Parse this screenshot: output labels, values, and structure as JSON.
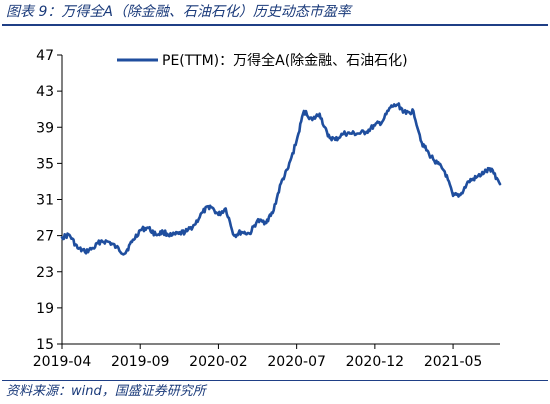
{
  "figure": {
    "title": "图表 9：万得全A（除金融、石油石化）历史动态市盈率",
    "source": "资料来源：wind，国盛证券研究所"
  },
  "colors": {
    "series": "#1f4e9e",
    "title": "#1a3a7a",
    "axis": "#000000"
  },
  "chart_data": {
    "type": "line",
    "title": "",
    "xlabel": "",
    "ylabel": "",
    "ylim": [
      15,
      47
    ],
    "y_ticks": [
      15,
      19,
      23,
      27,
      31,
      35,
      39,
      43,
      47
    ],
    "x_tick_labels": [
      "2019-04",
      "2019-09",
      "2020-02",
      "2020-07",
      "2020-12",
      "2021-05"
    ],
    "x_range_months": [
      "2019-04",
      "2021-08"
    ],
    "grid": false,
    "legend_position": "top-center",
    "series": [
      {
        "name": "PE(TTM)：万得全A(除金融、石油石化)",
        "x": [
          "2019-04-01",
          "2019-04-15",
          "2019-05-01",
          "2019-05-15",
          "2019-06-01",
          "2019-06-15",
          "2019-07-01",
          "2019-07-15",
          "2019-08-01",
          "2019-08-15",
          "2019-09-01",
          "2019-09-15",
          "2019-10-01",
          "2019-10-15",
          "2019-11-01",
          "2019-11-15",
          "2019-12-01",
          "2019-12-15",
          "2020-01-01",
          "2020-01-15",
          "2020-02-01",
          "2020-02-15",
          "2020-03-01",
          "2020-03-15",
          "2020-04-01",
          "2020-04-15",
          "2020-05-01",
          "2020-05-15",
          "2020-06-01",
          "2020-06-15",
          "2020-07-01",
          "2020-07-15",
          "2020-08-01",
          "2020-08-15",
          "2020-09-01",
          "2020-09-15",
          "2020-10-01",
          "2020-10-15",
          "2020-11-01",
          "2020-11-15",
          "2020-12-01",
          "2020-12-15",
          "2021-01-01",
          "2021-01-15",
          "2021-02-01",
          "2021-02-15",
          "2021-03-01",
          "2021-03-15",
          "2021-04-01",
          "2021-04-15",
          "2021-05-01",
          "2021-05-15",
          "2021-06-01",
          "2021-06-15",
          "2021-07-01",
          "2021-07-15",
          "2021-08-01"
        ],
        "y": [
          26.8,
          27.1,
          25.6,
          25.2,
          25.6,
          26.4,
          26.3,
          25.7,
          25.0,
          26.3,
          27.6,
          27.9,
          27.1,
          27.4,
          27.0,
          27.2,
          27.5,
          28.2,
          29.6,
          30.3,
          29.3,
          30.0,
          27.0,
          27.4,
          27.2,
          28.6,
          28.5,
          29.5,
          32.8,
          34.5,
          37.5,
          40.8,
          39.8,
          40.5,
          38.0,
          37.6,
          38.3,
          38.3,
          38.3,
          38.5,
          39.2,
          39.6,
          41.2,
          41.5,
          40.5,
          40.8,
          37.3,
          36.0,
          35.0,
          34.1,
          31.4,
          31.5,
          33.0,
          33.4,
          34.0,
          34.4,
          32.7
        ]
      }
    ]
  }
}
